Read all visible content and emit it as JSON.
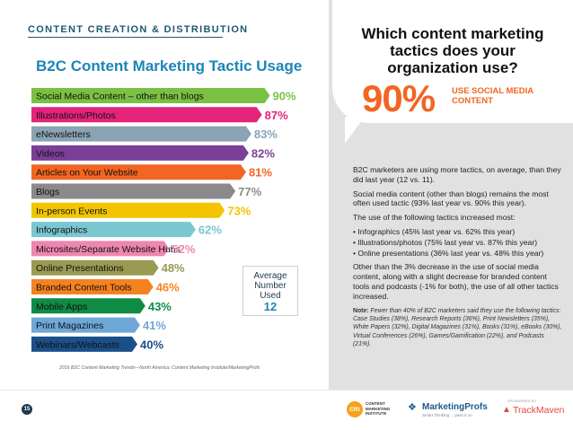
{
  "header": {
    "section_label": "CONTENT CREATION & DISTRIBUTION"
  },
  "chart_data": {
    "type": "bar",
    "orientation": "horizontal",
    "title": "B2C Content Marketing Tactic Usage",
    "xlabel": "",
    "ylabel": "",
    "xlim": [
      0,
      100
    ],
    "grid": false,
    "categories": [
      "Social Media Content – other than blogs",
      "Illustrations/Photos",
      "eNewsletters",
      "Videos",
      "Articles on Your Website",
      "Blogs",
      "In-person Events",
      "Infographics",
      "Microsites/Separate Website Hubs",
      "Online Presentations",
      "Branded Content Tools",
      "Mobile Apps",
      "Print Magazines",
      "Webinars/Webcasts"
    ],
    "values": [
      90,
      87,
      83,
      82,
      81,
      77,
      73,
      62,
      52,
      48,
      46,
      43,
      41,
      40
    ],
    "value_labels": [
      "90%",
      "87%",
      "83%",
      "82%",
      "81%",
      "77%",
      "73%",
      "62%",
      "52%",
      "48%",
      "46%",
      "43%",
      "41%",
      "40%"
    ],
    "colors": [
      "#7ac143",
      "#e4237b",
      "#8aa3b5",
      "#7b3f98",
      "#f26522",
      "#8a8a8c",
      "#f2c500",
      "#7ac7d1",
      "#ee86b0",
      "#9a9a53",
      "#f58220",
      "#0f8b45",
      "#6fa7d8",
      "#1b4f8a"
    ]
  },
  "average_box": {
    "label": "Average Number Used",
    "value": "12"
  },
  "source_note": "2016 B2C Content Marketing Trends—North America: Content Marketing Institute/MarketingProfs",
  "callout": {
    "question": "Which content marketing tactics does your organization use?",
    "big_stat": "90%",
    "big_stat_label": "USE SOCIAL MEDIA CONTENT",
    "accent_color": "#f26522"
  },
  "body": {
    "p1": "B2C marketers are using more tactics, on average, than they did last year (12 vs. 11).",
    "p2": "Social media content (other than blogs) remains the most often used tactic (93% last year vs. 90% this year).",
    "p3": "The use of the following tactics increased most:",
    "bullets": [
      "• Infographics (45% last year vs. 62% this year)",
      "• Illustrations/photos (75% last year vs. 87% this year)",
      "• Online presentations (36% last year vs. 48% this year)"
    ],
    "p4": "Other than the 3% decrease in the use of social media content, along with a slight decrease for branded content tools and podcasts (-1% for both), the use of all other tactics increased.",
    "note_label": "Note:",
    "note_text": "Fewer than 40% of B2C marketers said they use the following tactics: Case Studies (38%), Research Reports (36%), Print Newsletters (35%), White Papers (32%), Digital Magazines (31%), Books (31%), eBooks (30%), Virtual Conferences (26%), Games/Gamification (22%), and Podcasts (21%)."
  },
  "footer": {
    "page_number": "15",
    "cmi_mark": "cm",
    "cmi_text": "CONTENT MARKETING INSTITUTE",
    "marketingprofs": "MarketingProfs",
    "marketingprofs_tag": "Smart Thinking ... pass it on",
    "sponsored_by": "SPONSORED BY",
    "trackmaven": "TrackMaven"
  }
}
